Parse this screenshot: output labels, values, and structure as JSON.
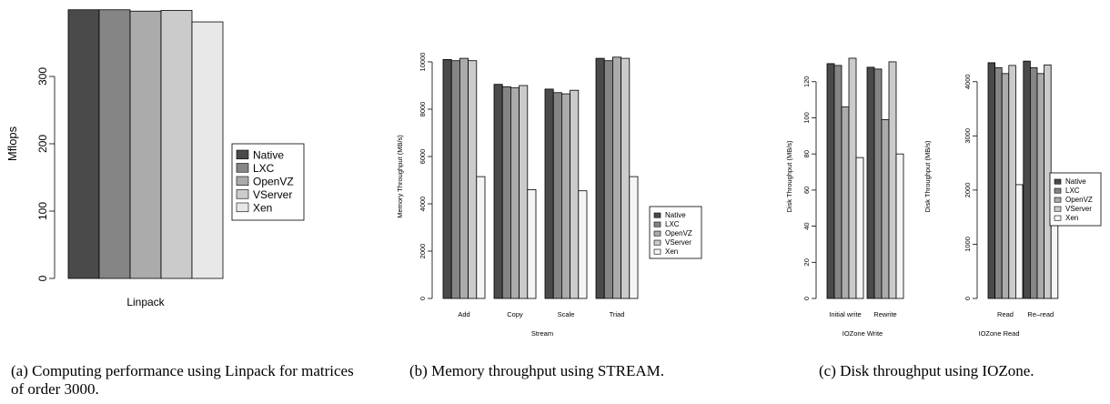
{
  "chart_data": [
    {
      "type": "bar",
      "ylabel": "Mflops",
      "xlabel": "",
      "categories": [
        "Linpack"
      ],
      "series": [
        {
          "name": "Native",
          "values": [
            399
          ]
        },
        {
          "name": "LXC",
          "values": [
            399
          ]
        },
        {
          "name": "OpenVZ",
          "values": [
            397
          ]
        },
        {
          "name": "VServer",
          "values": [
            398
          ]
        },
        {
          "name": "Xen",
          "values": [
            381
          ]
        }
      ],
      "yticks": [
        "0",
        "100",
        "200",
        "300"
      ],
      "ylim": [
        0,
        400
      ],
      "legend": "right",
      "colors": [
        "#4a4a4a",
        "#858585",
        "#ababab",
        "#cbcbcb",
        "#e8e8e8"
      ]
    },
    {
      "type": "bar",
      "ylabel": "Memory Throughput (MB/s)",
      "xlabel": "Stream",
      "categories": [
        "Add",
        "Copy",
        "Scale",
        "Triad"
      ],
      "series": [
        {
          "name": "Native",
          "values": [
            10100,
            9050,
            8850,
            10150
          ]
        },
        {
          "name": "LXC",
          "values": [
            10050,
            8950,
            8700,
            10050
          ]
        },
        {
          "name": "OpenVZ",
          "values": [
            10150,
            8900,
            8650,
            10200
          ]
        },
        {
          "name": "VServer",
          "values": [
            10050,
            9000,
            8800,
            10150
          ]
        },
        {
          "name": "Xen",
          "values": [
            5150,
            4600,
            4550,
            5150
          ]
        }
      ],
      "yticks": [
        "0",
        "2000",
        "4000",
        "6000",
        "8000",
        "10000"
      ],
      "ylim": [
        0,
        10500
      ],
      "legend": "right",
      "colors": [
        "#4a4a4a",
        "#858585",
        "#ababab",
        "#cbcbcb",
        "#f5f5f5"
      ]
    },
    {
      "type": "bar",
      "ylabel": "Disk Throughput (MB/s)",
      "xlabel": "IOZone Write",
      "categories": [
        "Initial write",
        "Rewrite"
      ],
      "series": [
        {
          "name": "Native",
          "values": [
            130,
            128
          ]
        },
        {
          "name": "LXC",
          "values": [
            129,
            127
          ]
        },
        {
          "name": "OpenVZ",
          "values": [
            106,
            99
          ]
        },
        {
          "name": "VServer",
          "values": [
            133,
            131
          ]
        },
        {
          "name": "Xen",
          "values": [
            78,
            80
          ]
        }
      ],
      "yticks": [
        "0",
        "20",
        "40",
        "60",
        "80",
        "100",
        "120"
      ],
      "ylim": [
        0,
        135
      ],
      "colors": [
        "#4a4a4a",
        "#858585",
        "#ababab",
        "#cbcbcb",
        "#f5f5f5"
      ]
    },
    {
      "type": "bar",
      "ylabel": "Disk Throughput (MB/s)",
      "xlabel": "IOZone Read",
      "categories": [
        "Read",
        "Re–read"
      ],
      "series": [
        {
          "name": "Native",
          "values": [
            4350,
            4380
          ]
        },
        {
          "name": "LXC",
          "values": [
            4260,
            4260
          ]
        },
        {
          "name": "OpenVZ",
          "values": [
            4150,
            4150
          ]
        },
        {
          "name": "VServer",
          "values": [
            4300,
            4310
          ]
        },
        {
          "name": "Xen",
          "values": [
            2100,
            2100
          ]
        }
      ],
      "yticks": [
        "0",
        "1000",
        "2000",
        "3000",
        "4000"
      ],
      "ylim": [
        0,
        4500
      ],
      "legend": "right",
      "colors": [
        "#4a4a4a",
        "#858585",
        "#ababab",
        "#cbcbcb",
        "#f5f5f5"
      ]
    }
  ],
  "captions": {
    "a": "(a) Computing performance using Linpack for matrices of order 3000.",
    "b": "(b) Memory throughput using STREAM.",
    "c": "(c) Disk throughput using IOZone."
  }
}
